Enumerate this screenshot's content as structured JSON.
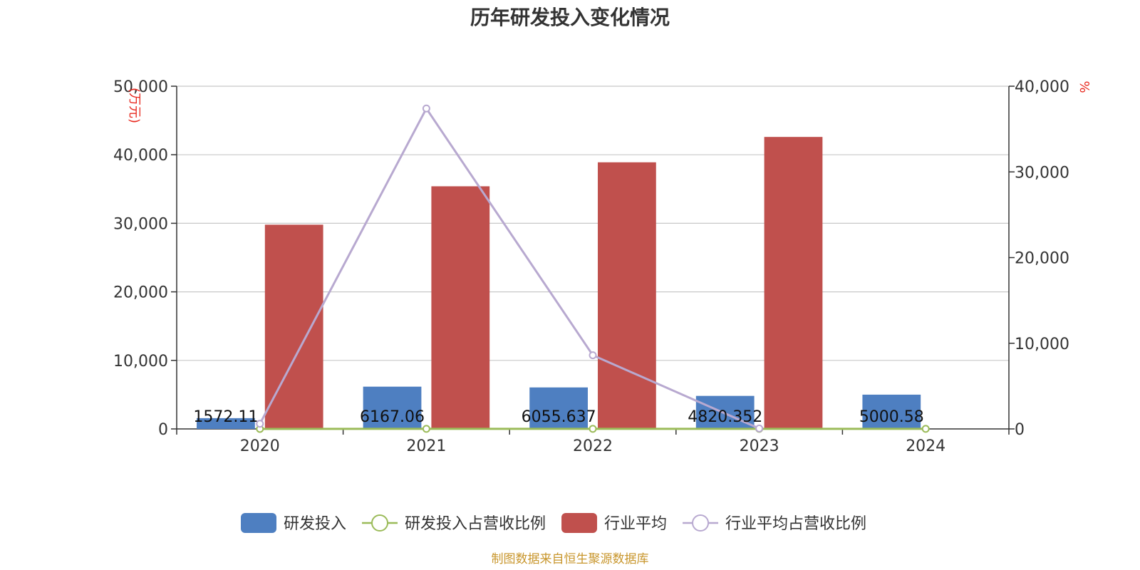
{
  "chart_data": {
    "type": "bar",
    "title": "历年研发投入变化情况",
    "categories": [
      "2020",
      "2021",
      "2022",
      "2023",
      "2024"
    ],
    "y_left": {
      "unit": "(万元)",
      "ylim": [
        0,
        50000
      ],
      "ticks": [
        "0",
        "10,000",
        "20,000",
        "30,000",
        "40,000",
        "50,000"
      ]
    },
    "y_right": {
      "unit": "%",
      "ylim": [
        0,
        40000
      ],
      "ticks": [
        "0",
        "10,000",
        "20,000",
        "30,000",
        "40,000"
      ]
    },
    "series": [
      {
        "name": "研发投入",
        "kind": "bar",
        "axis": "left",
        "color": "#4e7fc1",
        "values": [
          1572.11,
          6167.06,
          6055.637,
          4820.352,
          5000.58
        ],
        "labels": [
          "1572.11",
          "6167.06",
          "6055.637",
          "4820.352",
          "5000.58"
        ]
      },
      {
        "name": "研发投入占营收比例",
        "kind": "line",
        "axis": "right",
        "color": "#9bbb59",
        "values": [
          4,
          8,
          9,
          10,
          11
        ]
      },
      {
        "name": "行业平均",
        "kind": "bar",
        "axis": "left",
        "color": "#c0504d",
        "values": [
          29800,
          35400,
          38900,
          42600,
          null
        ]
      },
      {
        "name": "行业平均占营收比例",
        "kind": "line",
        "axis": "right",
        "color": "#b8a9d0",
        "values": [
          600,
          37400,
          8600,
          50,
          null
        ]
      }
    ],
    "grid": true,
    "legend_position": "bottom"
  },
  "source": "制图数据来自恒生聚源数据库"
}
